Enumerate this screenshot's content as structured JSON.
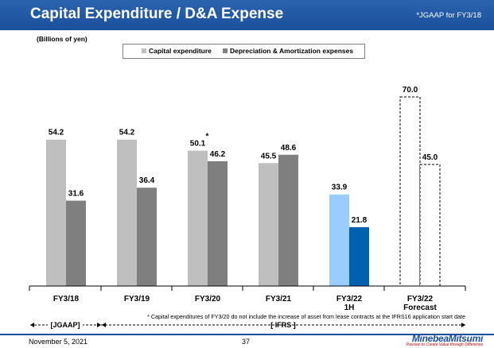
{
  "header": {
    "title": "Capital Expenditure / D&A Expense",
    "note": "*JGAAP for FY3/18"
  },
  "chart_data": {
    "type": "bar",
    "title": "Capital Expenditure / D&A Expense",
    "ylabel": "(Billions of yen)",
    "ylim": [
      0,
      80
    ],
    "categories": [
      "FY3/18",
      "FY3/19",
      "FY3/20",
      "FY3/21",
      "FY3/22 1H",
      "FY3/22 Forecast"
    ],
    "category_lines": [
      [
        "FY3/18"
      ],
      [
        "FY3/19"
      ],
      [
        "FY3/20"
      ],
      [
        "FY3/21"
      ],
      [
        "FY3/22",
        "1H"
      ],
      [
        "FY3/22",
        "Forecast"
      ]
    ],
    "series": [
      {
        "name": "Capital expenditure",
        "values": [
          54.2,
          54.2,
          50.1,
          45.5,
          33.9,
          70.0
        ],
        "labels": [
          "54.2",
          "54.2",
          "50.1",
          "45.5",
          "33.9",
          "70.0"
        ]
      },
      {
        "name": "Depreciation & Amortization expenses",
        "values": [
          31.6,
          36.4,
          46.2,
          48.6,
          21.8,
          45.0
        ],
        "labels": [
          "31.6",
          "36.4",
          "46.2",
          "48.6",
          "21.8",
          "45.0"
        ]
      }
    ],
    "legend": [
      {
        "label": "Capital expenditure",
        "color": "#bfbfbf"
      },
      {
        "label": "Depreciation & Amortization expenses",
        "color": "#7f7f7f"
      }
    ],
    "colors": {
      "capex": "#bfbfbf",
      "da": "#7f7f7f",
      "capex_half": "#99ccff",
      "da_half": "#0061b0"
    },
    "asterisk_mark": "*",
    "footnote": "* Capital expenditures of FY3/20 do not include the increase of asset from lease contracts at the IFRS16 application start date",
    "standards": [
      {
        "label": "[JGAAP]"
      },
      {
        "label": "[ IFRS ]"
      }
    ]
  },
  "footer": {
    "date": "November 5, 2021",
    "page": "37",
    "logo": "MinebeaMitsumi",
    "tagline": "Passion to Create Value through Difference"
  }
}
